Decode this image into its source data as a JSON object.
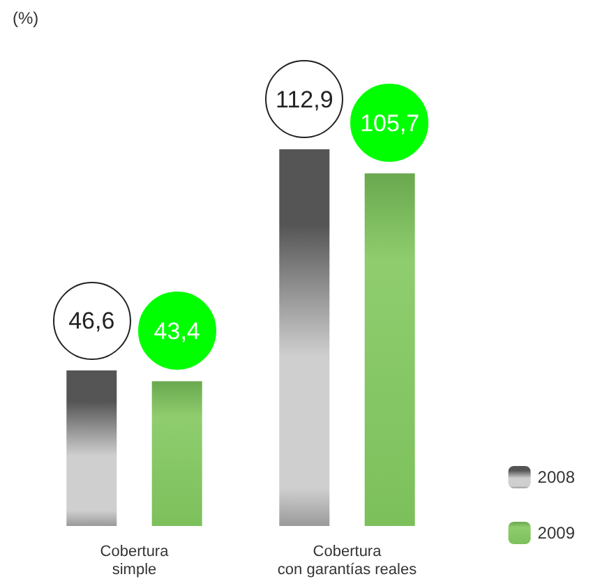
{
  "chart_data": {
    "type": "bar",
    "annotations": [
      "(%)"
    ],
    "categories": [
      "Cobertura simple",
      "Cobertura con garantías reales"
    ],
    "series": [
      {
        "name": "2008",
        "color": "#555555",
        "values": [
          46.6,
          112.9
        ],
        "value_labels": [
          "46,6",
          "112,9"
        ]
      },
      {
        "name": "2009",
        "color": "#6aa84f",
        "values": [
          43.4,
          105.7
        ],
        "value_labels": [
          "43,4",
          "105,7"
        ]
      }
    ],
    "legend": "bottom right"
  }
}
